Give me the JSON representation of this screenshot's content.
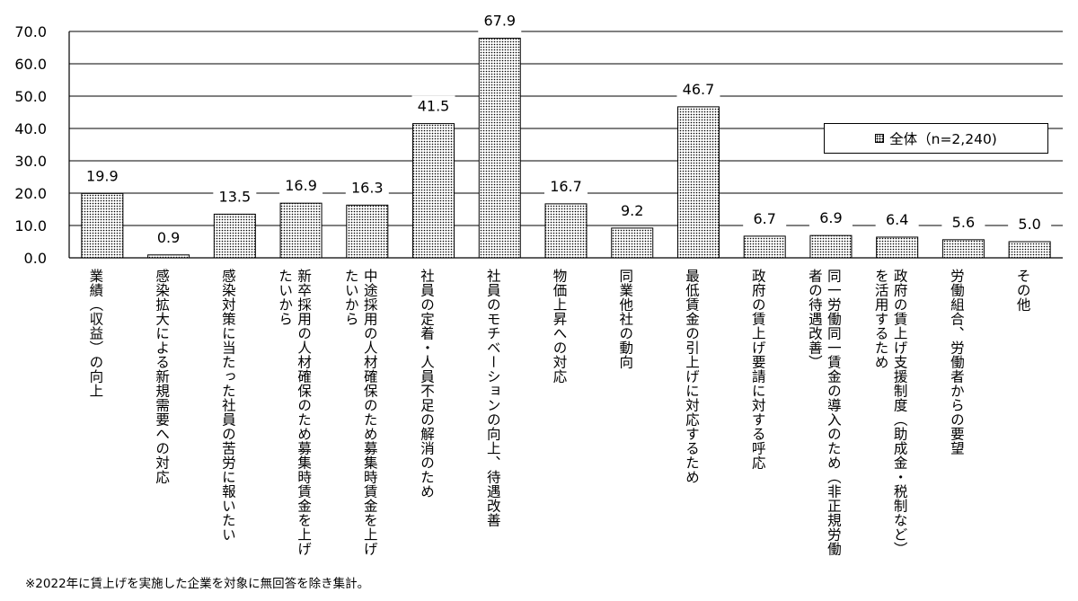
{
  "chart_data": {
    "type": "bar",
    "categories": [
      "業績（収益）の向上",
      "感染拡大による新規需要への対応",
      "感染対策に当たった社員の苦労に報いたい",
      "新卒採用の人材確保のため募集時賃金を上げたいから",
      "中途採用の人材確保のため募集時賃金を上げたいから",
      "社員の定着・人員不足の解消のため",
      "社員のモチベーションの向上、待遇改善",
      "物価上昇への対応",
      "同業他社の動向",
      "最低賃金の引上げに対応するため",
      "政府の賃上げ要請に対する呼応",
      "同一労働同一賃金の導入のため（非正規労働者の待遇改善）",
      "政府の賃上げ支援制度（助成金・税制など）を活用するため",
      "労働組合、労働者からの要望",
      "その他"
    ],
    "series": [
      {
        "name": "全体（n=2,240)",
        "values": [
          19.9,
          0.9,
          13.5,
          16.9,
          16.3,
          41.5,
          67.9,
          16.7,
          9.2,
          46.7,
          6.7,
          6.9,
          6.4,
          5.6,
          5.0
        ]
      }
    ],
    "value_labels": [
      "19.9",
      "0.9",
      "13.5",
      "16.9",
      "16.3",
      "41.5",
      "67.9",
      "16.7",
      "9.2",
      "46.7",
      "6.7",
      "6.9",
      "6.4",
      "5.6",
      "5.0"
    ],
    "ylim": [
      0,
      70
    ],
    "yticks": [
      "0.0",
      "10.0",
      "20.0",
      "30.0",
      "40.0",
      "50.0",
      "60.0",
      "70.0"
    ],
    "grid": true,
    "legend_position": "right",
    "bar_pattern": "dotted",
    "title": "",
    "xlabel": "",
    "ylabel": ""
  },
  "footnote": "※2022年に賃上げを実施した企業を対象に無回答を除き集計。"
}
